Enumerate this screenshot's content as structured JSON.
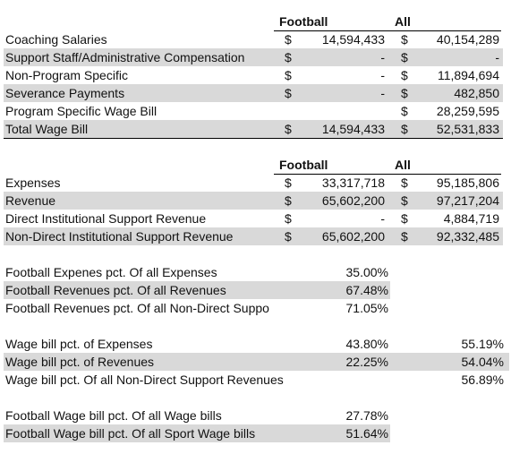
{
  "table1": {
    "header": {
      "football": "Football",
      "all": "All"
    },
    "rows": [
      {
        "label": "Coaching Salaries",
        "fb_sign": "$",
        "fb_value": "14,594,433",
        "all_sign": "$",
        "all_value": "40,154,289",
        "shaded": false
      },
      {
        "label": "Support Staff/Administrative Compensation",
        "fb_sign": "$",
        "fb_value": "-",
        "all_sign": "$",
        "all_value": "-",
        "shaded": true
      },
      {
        "label": "Non-Program Specific",
        "fb_sign": "$",
        "fb_value": "-",
        "all_sign": "$",
        "all_value": "11,894,694",
        "shaded": false
      },
      {
        "label": "Severance Payments",
        "fb_sign": "$",
        "fb_value": "-",
        "all_sign": "$",
        "all_value": "482,850",
        "shaded": true
      },
      {
        "label": "Program Specific Wage Bill",
        "fb_sign": "",
        "fb_value": "",
        "all_sign": "$",
        "all_value": "28,259,595",
        "shaded": false
      },
      {
        "label": "Total Wage Bill",
        "fb_sign": "$",
        "fb_value": "14,594,433",
        "all_sign": "$",
        "all_value": "52,531,833",
        "shaded": true
      }
    ]
  },
  "table2": {
    "header": {
      "football": "Football",
      "all": "All"
    },
    "rows": [
      {
        "label": "Expenses",
        "fb_sign": "$",
        "fb_value": "33,317,718",
        "all_sign": "$",
        "all_value": "95,185,806",
        "shaded": false
      },
      {
        "label": "Revenue",
        "fb_sign": "$",
        "fb_value": "65,602,200",
        "all_sign": "$",
        "all_value": "97,217,204",
        "shaded": true
      },
      {
        "label": "Direct Institutional Support Revenue",
        "fb_sign": "$",
        "fb_value": "-",
        "all_sign": "$",
        "all_value": "4,884,719",
        "shaded": false
      },
      {
        "label": "Non-Direct Institutional Support Revenue",
        "fb_sign": "$",
        "fb_value": "65,602,200",
        "all_sign": "$",
        "all_value": "92,332,485",
        "shaded": true
      }
    ]
  },
  "pct1": [
    {
      "label": "Football Expenes pct. Of all Expenses",
      "value": "35.00%",
      "shaded": false
    },
    {
      "label": "Football Revenues pct. Of all Revenues",
      "value": "67.48%",
      "shaded": true
    },
    {
      "label": "Football Revenues pct. Of all Non-Direct Suppo",
      "value": "71.05%",
      "shaded": false
    }
  ],
  "pct2": [
    {
      "label": "Wage bill pct. of Expenses",
      "value": "43.80%",
      "all": "55.19%",
      "shaded": false
    },
    {
      "label": "Wage bill pct. of Revenues",
      "value": "22.25%",
      "all": "54.04%",
      "shaded": true
    },
    {
      "label": "Wage bill pct. Of all Non-Direct Support Revenues",
      "value": "",
      "all": "56.89%",
      "shaded": false
    }
  ],
  "pct3": [
    {
      "label": "Football Wage bill pct. Of all Wage bills",
      "value": "27.78%",
      "shaded": false
    },
    {
      "label": "Football Wage bill pct. Of all Sport Wage bills",
      "value": "51.64%",
      "shaded": true
    }
  ]
}
